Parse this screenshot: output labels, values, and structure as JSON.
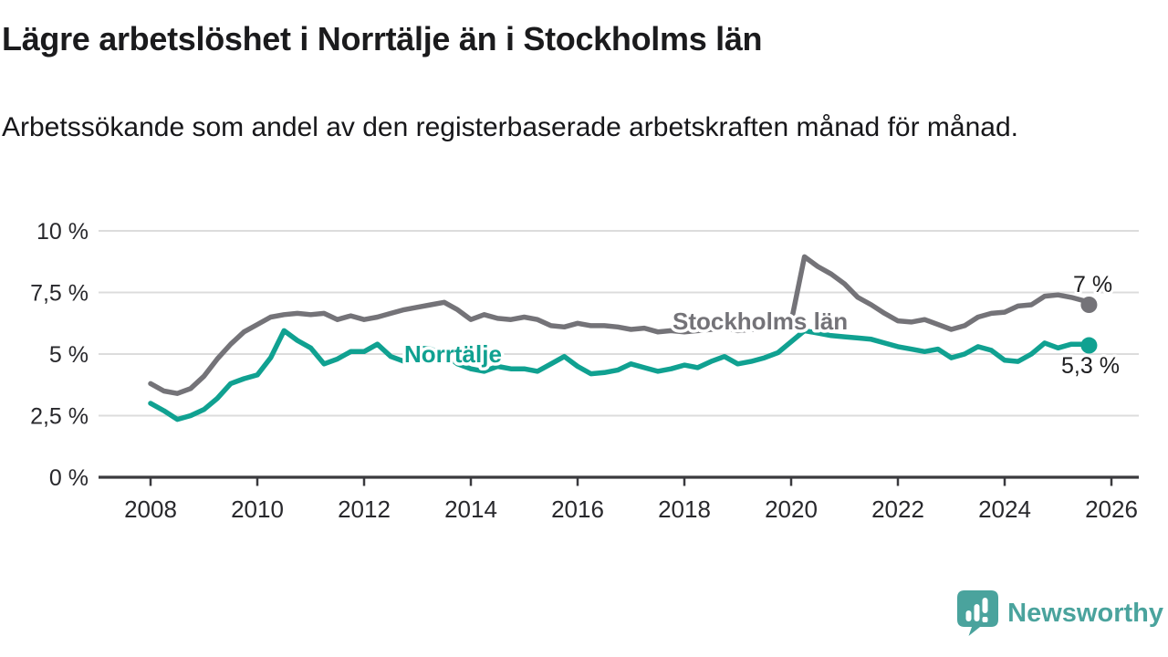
{
  "header": {
    "title": "Lägre arbetslöshet i Norrtälje än i Stockholms län",
    "subtitle": "Arbetssökande som andel av den registerbaserade arbetskraften månad för månad."
  },
  "chart_data": {
    "type": "line",
    "x_unit": "decimal year (monthly series, sampled quarterly)",
    "x": [
      2008,
      2008.25,
      2008.5,
      2008.75,
      2009,
      2009.25,
      2009.5,
      2009.75,
      2010,
      2010.25,
      2010.5,
      2010.75,
      2011,
      2011.25,
      2011.5,
      2011.75,
      2012,
      2012.25,
      2012.5,
      2012.75,
      2013,
      2013.25,
      2013.5,
      2013.75,
      2014,
      2014.25,
      2014.5,
      2014.75,
      2015,
      2015.25,
      2015.5,
      2015.75,
      2016,
      2016.25,
      2016.5,
      2016.75,
      2017,
      2017.25,
      2017.5,
      2017.75,
      2018,
      2018.25,
      2018.5,
      2018.75,
      2019,
      2019.25,
      2019.5,
      2019.75,
      2020,
      2020.25,
      2020.5,
      2020.75,
      2021,
      2021.25,
      2021.5,
      2021.75,
      2022,
      2022.25,
      2022.5,
      2022.75,
      2023,
      2023.25,
      2023.5,
      2023.75,
      2024,
      2024.25,
      2024.5,
      2024.75,
      2025,
      2025.25,
      2025.5,
      2025.58
    ],
    "series": [
      {
        "name": "Stockholms län",
        "color": "#747378",
        "end_label": "7 %",
        "end_value": 7.0,
        "values": [
          3.8,
          3.5,
          3.4,
          3.6,
          4.1,
          4.8,
          5.4,
          5.9,
          6.2,
          6.5,
          6.6,
          6.65,
          6.6,
          6.65,
          6.4,
          6.55,
          6.4,
          6.5,
          6.65,
          6.8,
          6.9,
          7.0,
          7.1,
          6.8,
          6.4,
          6.6,
          6.45,
          6.4,
          6.5,
          6.4,
          6.15,
          6.1,
          6.25,
          6.15,
          6.15,
          6.1,
          6.0,
          6.05,
          5.9,
          5.95,
          5.9,
          5.95,
          6.0,
          6.05,
          5.95,
          6.0,
          6.05,
          6.15,
          6.3,
          8.95,
          8.55,
          8.25,
          7.85,
          7.3,
          7.0,
          6.65,
          6.35,
          6.3,
          6.4,
          6.2,
          6.0,
          6.15,
          6.5,
          6.65,
          6.7,
          6.95,
          7.0,
          7.35,
          7.4,
          7.3,
          7.15,
          7.0
        ]
      },
      {
        "name": "Norrtälje",
        "color": "#10a191",
        "end_label": "5,3 %",
        "end_value": 5.3,
        "values": [
          3.0,
          2.7,
          2.35,
          2.5,
          2.75,
          3.2,
          3.8,
          4.0,
          4.15,
          4.85,
          5.95,
          5.55,
          5.25,
          4.6,
          4.8,
          5.1,
          5.1,
          5.4,
          4.9,
          4.7,
          5.25,
          5.2,
          5.0,
          4.6,
          4.4,
          4.3,
          4.5,
          4.4,
          4.4,
          4.3,
          4.6,
          4.9,
          4.5,
          4.2,
          4.25,
          4.35,
          4.6,
          4.45,
          4.3,
          4.4,
          4.55,
          4.45,
          4.7,
          4.9,
          4.6,
          4.7,
          4.85,
          5.05,
          5.5,
          5.95,
          5.85,
          5.75,
          5.7,
          5.65,
          5.6,
          5.45,
          5.3,
          5.2,
          5.1,
          5.2,
          4.85,
          5.0,
          5.3,
          5.15,
          4.75,
          4.7,
          5.0,
          5.45,
          5.25,
          5.4,
          5.4,
          5.35
        ]
      }
    ],
    "yticks": [
      {
        "v": 0,
        "label": "0 %"
      },
      {
        "v": 2.5,
        "label": "2,5 %"
      },
      {
        "v": 5,
        "label": "5 %"
      },
      {
        "v": 7.5,
        "label": "7,5 %"
      },
      {
        "v": 10,
        "label": "10 %"
      }
    ],
    "xticks": [
      {
        "v": 2008,
        "label": "2008"
      },
      {
        "v": 2010,
        "label": "2010"
      },
      {
        "v": 2012,
        "label": "2012"
      },
      {
        "v": 2014,
        "label": "2014"
      },
      {
        "v": 2016,
        "label": "2016"
      },
      {
        "v": 2018,
        "label": "2018"
      },
      {
        "v": 2020,
        "label": "2020"
      },
      {
        "v": 2022,
        "label": "2022"
      },
      {
        "v": 2024,
        "label": "2024"
      },
      {
        "v": 2026,
        "label": "2026"
      }
    ],
    "ylim": [
      0,
      10
    ],
    "xlim": [
      2007.0,
      2026.5
    ],
    "grid": true,
    "legend_position": "inline-labels-on-lines"
  },
  "footer": {
    "brand": "Newsworthy",
    "brand_color": "#4aa39d",
    "logo_icon": "speech-bubble-bar-chart-icon"
  }
}
